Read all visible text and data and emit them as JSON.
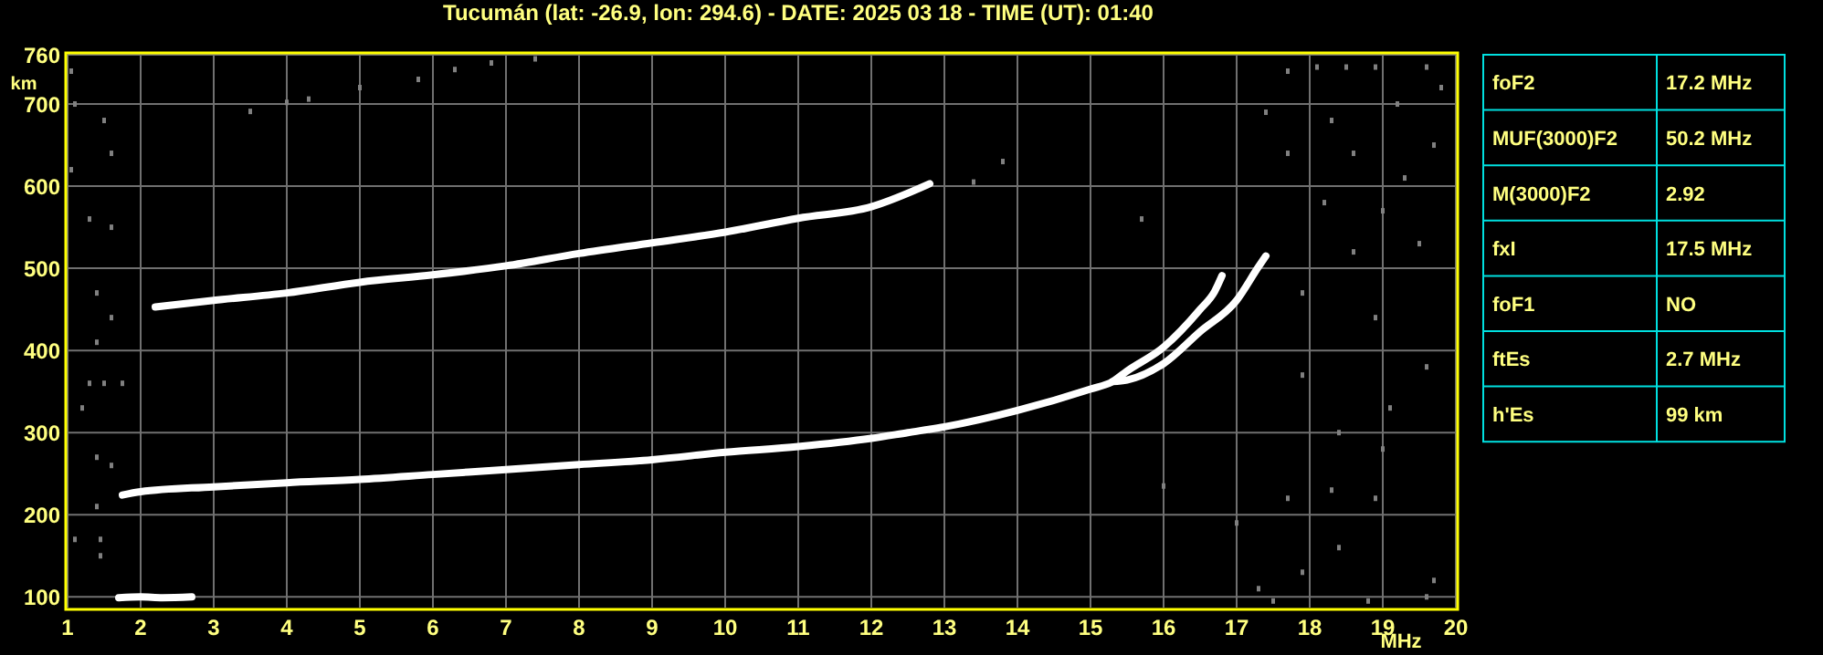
{
  "chart_data": [
    {
      "type": "line",
      "title": "Tucumán (lat: -26.9, lon: 294.6) - DATE: 2025 03 18 - TIME (UT): 01:40",
      "xlabel": "MHz",
      "ylabel": "km",
      "xlim": [
        1,
        20
      ],
      "ylim": [
        87,
        760
      ],
      "xticks": [
        1,
        2,
        3,
        4,
        5,
        6,
        7,
        8,
        9,
        10,
        11,
        12,
        13,
        14,
        15,
        16,
        17,
        18,
        19,
        20
      ],
      "yticks": [
        100,
        200,
        300,
        400,
        500,
        600,
        700,
        760
      ],
      "grid": true,
      "marker": "none",
      "line_style": "solid",
      "series": [
        {
          "color": "#ffffff",
          "x": [
            1.75,
            2,
            3,
            4,
            5,
            6,
            7,
            8,
            9,
            10,
            11,
            12,
            12.5,
            13,
            14,
            15,
            15.3,
            15.5,
            16,
            16.5,
            16.7,
            16.8
          ],
          "values": [
            224,
            228,
            234,
            239,
            243,
            249,
            255,
            261,
            267,
            276,
            283,
            293,
            300,
            307,
            327,
            353,
            362,
            375,
            404,
            450,
            472,
            491
          ]
        },
        {
          "color": "#ffffff",
          "x": [
            15.3,
            15.5,
            16,
            16.5,
            17,
            17.3,
            17.4
          ],
          "values": [
            362,
            364,
            384,
            423,
            461,
            502,
            515
          ]
        },
        {
          "color": "#ffffff",
          "x": [
            2.2,
            3,
            4,
            5,
            6,
            7,
            8,
            9,
            10,
            11,
            12,
            12.8
          ],
          "values": [
            453,
            461,
            470,
            483,
            492,
            503,
            518,
            531,
            544,
            561,
            575,
            603
          ]
        },
        {
          "color": "#ffffff",
          "x": [
            1.7,
            2,
            2.3,
            2.7
          ],
          "values": [
            99,
            100,
            99,
            100
          ]
        },
        {
          "type": "scatter",
          "marker": "square",
          "color": "#808080",
          "x": [
            3.5,
            4,
            4.3,
            5,
            5.8,
            6.3,
            6.8,
            7.4
          ],
          "values": [
            691,
            702,
            706,
            720,
            730,
            742,
            750,
            755
          ]
        },
        {
          "type": "scatter",
          "marker": "square",
          "color": "#808080",
          "x": [
            1.05,
            1.1,
            1.05,
            1.5,
            1.6,
            1.3,
            1.6,
            1.4,
            1.6,
            1.4,
            1.3,
            1.5,
            1.75,
            1.2,
            1.4,
            1.6,
            1.4,
            1.45,
            1.1,
            1.45,
            17.7,
            18.1,
            18.5,
            18.9,
            19.6,
            17.4,
            18.3,
            19.2,
            19.8,
            17.7,
            18.6,
            19.3,
            19.7,
            18.2,
            19,
            18.6,
            19.5,
            17.9,
            18.9,
            17.9,
            19.1,
            19.6,
            18.4,
            19,
            17.7,
            18.3,
            18.9,
            16,
            17,
            18.4,
            17.9,
            19.7,
            17.3,
            19.6,
            18.8,
            17.5,
            15.7,
            13.4,
            13.8
          ],
          "values": [
            740,
            700,
            620,
            680,
            640,
            560,
            550,
            470,
            440,
            410,
            360,
            360,
            360,
            330,
            270,
            260,
            210,
            170,
            170,
            150,
            740,
            745,
            745,
            745,
            745,
            690,
            680,
            700,
            720,
            640,
            640,
            610,
            650,
            580,
            570,
            520,
            530,
            470,
            440,
            370,
            330,
            380,
            300,
            280,
            220,
            230,
            220,
            235,
            190,
            160,
            130,
            120,
            110,
            100,
            95,
            95,
            560,
            605,
            630
          ]
        }
      ]
    },
    {
      "type": "other",
      "annotations": [
        "foF2",
        "17.2 MHz",
        "MUF(3000)F2",
        "50.2 MHz",
        "M(3000)F2",
        "2.92",
        "fxI",
        "17.5 MHz",
        "foF1",
        "NO",
        "ftEs",
        "2.7 MHz",
        "h'Es",
        "99 km"
      ]
    }
  ]
}
